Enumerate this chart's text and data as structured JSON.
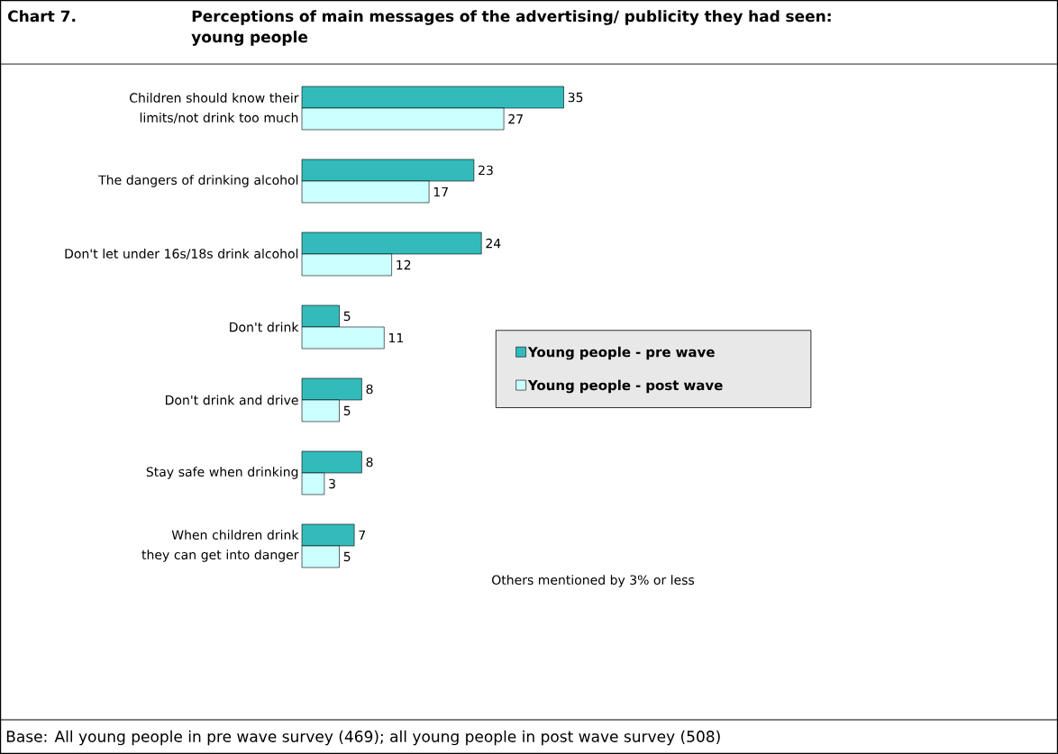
{
  "chart_data": {
    "type": "bar",
    "orientation": "horizontal",
    "title": "Chart 7.",
    "subtitle": "Perceptions of main messages of the advertising/ publicity they had seen:  young people",
    "categories": [
      "Children should know their limits/not drink too much",
      "The dangers of drinking alcohol",
      "Don't let under 16s/18s drink alcohol",
      "Don't drink",
      "Don't drink and drive",
      "Stay safe when drinking",
      "When children drink they can get into danger"
    ],
    "series": [
      {
        "name": "Young people - pre wave",
        "color": "#33bbbb",
        "values": [
          35,
          23,
          24,
          5,
          8,
          8,
          7
        ]
      },
      {
        "name": "Young people - post wave",
        "color": "#ccffff",
        "values": [
          27,
          17,
          12,
          11,
          5,
          3,
          5
        ]
      }
    ],
    "data_labels": true,
    "legend": "right",
    "annotations": [
      "Others mentioned by 3% or less",
      "Base: All young people in pre wave survey (469); all young people in post wave survey (508)"
    ]
  }
}
